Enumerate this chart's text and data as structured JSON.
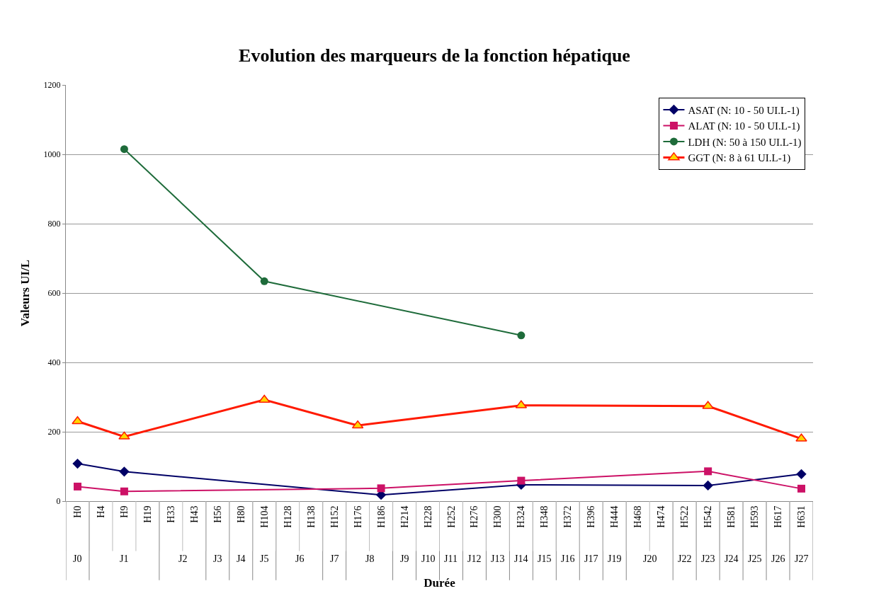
{
  "chart_data": {
    "type": "line",
    "title": "Evolution des marqueurs de la fonction hépatique",
    "xlabel": "Durée",
    "ylabel": "Valeurs UI/L",
    "categories": [
      "H0",
      "H4",
      "H9",
      "H19",
      "H33",
      "H43",
      "H56",
      "H80",
      "H104",
      "H128",
      "H138",
      "H152",
      "H176",
      "H186",
      "H214",
      "H228",
      "H252",
      "H276",
      "H300",
      "H324",
      "H348",
      "H372",
      "H396",
      "H444",
      "H468",
      "H474",
      "H522",
      "H542",
      "H581",
      "H593",
      "H617",
      "H631"
    ],
    "series": [
      {
        "name": "ASAT (N: 10 - 50 UI.L-1)",
        "color": "#000066",
        "marker": "diamond",
        "values": [
          108,
          null,
          85,
          null,
          null,
          null,
          null,
          null,
          null,
          null,
          null,
          null,
          null,
          18,
          null,
          null,
          null,
          null,
          null,
          47,
          null,
          null,
          null,
          null,
          null,
          null,
          null,
          45,
          null,
          null,
          null,
          78
        ]
      },
      {
        "name": "ALAT (N: 10 - 50 UI.L-1)",
        "color": "#cc1166",
        "marker": "square",
        "values": [
          42,
          null,
          28,
          null,
          null,
          null,
          null,
          null,
          null,
          null,
          null,
          null,
          null,
          37,
          null,
          null,
          null,
          null,
          null,
          59,
          null,
          null,
          null,
          null,
          null,
          null,
          null,
          86,
          null,
          null,
          null,
          36
        ]
      },
      {
        "name": "LDH (N: 50 à 150 UI.L-1)",
        "color": "#1e6b3a",
        "marker": "circle",
        "values": [
          null,
          null,
          1015,
          null,
          null,
          null,
          null,
          null,
          634,
          null,
          null,
          null,
          null,
          null,
          null,
          null,
          null,
          null,
          null,
          478,
          null,
          null,
          null,
          null,
          null,
          null,
          null,
          null,
          null,
          null,
          null,
          null
        ]
      },
      {
        "name": "GGT (N: 8 à 61 UI.L-1)",
        "color": "#ff1a00",
        "marker": "triangle",
        "values": [
          230,
          null,
          186,
          null,
          null,
          null,
          null,
          null,
          292,
          null,
          null,
          null,
          218,
          null,
          null,
          null,
          null,
          null,
          null,
          276,
          null,
          null,
          null,
          null,
          null,
          null,
          null,
          274,
          null,
          null,
          null,
          180
        ]
      }
    ],
    "ylim": [
      0,
      1200
    ],
    "yticks": [
      0,
      200,
      400,
      600,
      800,
      1000,
      1200
    ],
    "grid": "y",
    "legend": "top right",
    "annotations": [
      "J0",
      "J1",
      "J2",
      "J3",
      "J4",
      "J5",
      "J6",
      "J7",
      "J8",
      "J9",
      "J10",
      "J11",
      "J12",
      "J13",
      "J14",
      "J15",
      "J16",
      "J17",
      "J19",
      "J20",
      "J22",
      "J23",
      "J24",
      "J25",
      "J26",
      "J27"
    ]
  }
}
